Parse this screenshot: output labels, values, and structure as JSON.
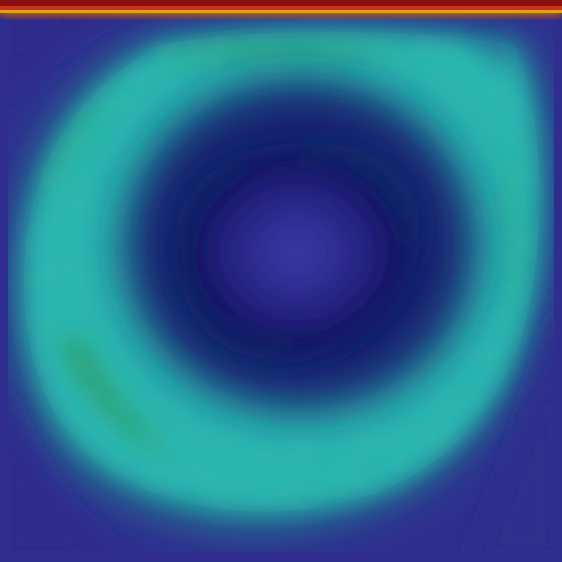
{
  "image": {
    "kind": "lid-driven cavity flow velocity magnitude contour",
    "colormap": "rainbow",
    "colors": {
      "background": "#2f2e8e",
      "deep_core": "#3a3aa8",
      "core_dark": "#151565",
      "ring_mid": "#1f8f9a",
      "ring_cyan": "#23b7b6",
      "ring_green": "#2aa86c",
      "lid_red": "#b01818",
      "lid_orange": "#e07a16",
      "lid_yellow": "#d8d020"
    },
    "features": [
      "lid-band",
      "primary-vortex-ring",
      "vortex-core",
      "corner-eddies"
    ]
  }
}
